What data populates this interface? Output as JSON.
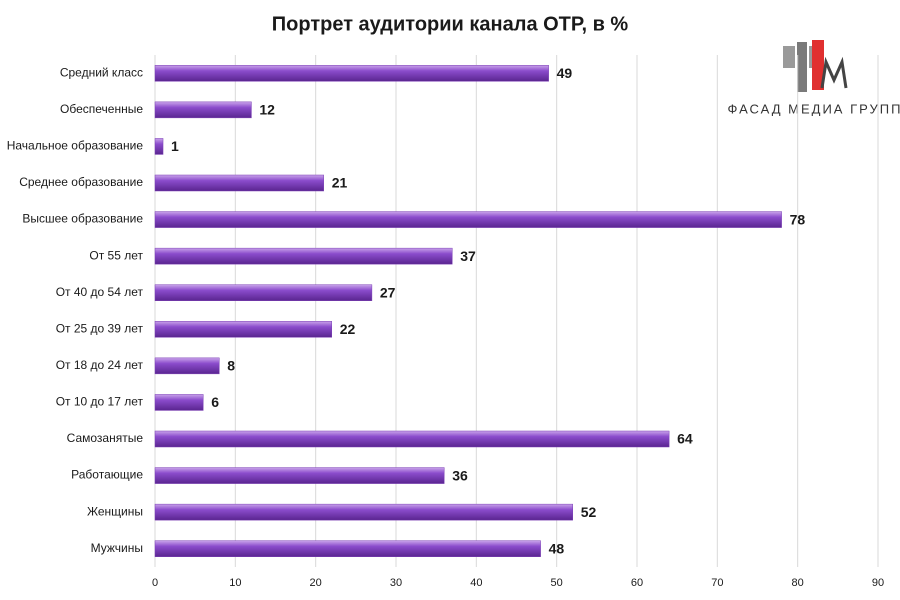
{
  "chart_data": {
    "type": "bar",
    "orientation": "horizontal",
    "title": "Портрет аудитории канала ОТР, в %",
    "categories": [
      "Средний класс",
      "Обеспеченные",
      "Начальное образование",
      "Среднее образование",
      "Высшее образование",
      "От 55 лет",
      "От 40 до 54 лет",
      "От 25 до 39 лет",
      "От 18 до 24 лет",
      "От 10 до 17 лет",
      "Самозанятые",
      "Работающие",
      "Женщины",
      "Мужчины"
    ],
    "values": [
      49,
      12,
      1,
      21,
      78,
      37,
      27,
      22,
      8,
      6,
      64,
      36,
      52,
      48
    ],
    "color": "#7b3fb5",
    "xlim": [
      0,
      90
    ],
    "xticks": [
      0,
      10,
      20,
      30,
      40,
      50,
      60,
      70,
      80,
      90
    ],
    "grid": true
  },
  "logo": {
    "text": "ФАСАД МЕДИА ГРУПП"
  }
}
